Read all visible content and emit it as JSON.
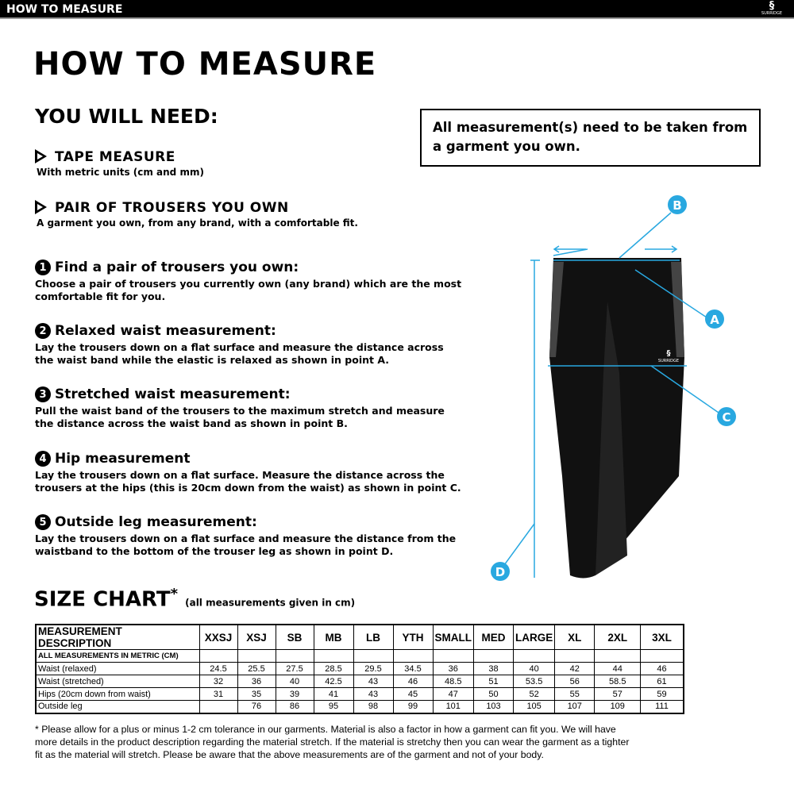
{
  "header": {
    "title": "HOW TO MEASURE",
    "brand": "SURRIDGE"
  },
  "main": {
    "title": "HOW TO MEASURE",
    "you_will_need": "YOU WILL NEED:",
    "needs": [
      {
        "title": "TAPE MEASURE",
        "desc": "With metric units (cm and mm)"
      },
      {
        "title": "PAIR OF TROUSERS YOU OWN",
        "desc": "A garment you own, from any brand, with a comfortable fit."
      }
    ],
    "steps": [
      {
        "num": "1",
        "title": "Find a pair of trousers you own:",
        "desc": "Choose a pair of trousers you currently own (any brand) which are the most comfortable fit for you."
      },
      {
        "num": "2",
        "title": "Relaxed waist measurement:",
        "desc": "Lay the trousers down on a flat surface and measure the distance across the waist band while the elastic is relaxed as shown in point A."
      },
      {
        "num": "3",
        "title": "Stretched waist measurement:",
        "desc": "Pull the waist band of the trousers to the maximum stretch and measure the distance across the waist band as shown in point B."
      },
      {
        "num": "4",
        "title": "Hip measurement",
        "desc": "Lay the trousers down on a flat surface. Measure the distance across the trousers at the hips (this is 20cm down from the waist)  as shown in point C."
      },
      {
        "num": "5",
        "title": "Outside leg measurement:",
        "desc": "Lay the trousers down on a flat surface and measure the distance from the waistband to the bottom of the trouser  leg as shown in point D."
      }
    ],
    "note": "All measurement(s) need to be taken from a garment you own.",
    "points": [
      "A",
      "B",
      "C",
      "D"
    ],
    "accent": "#29a8e0"
  },
  "size_chart": {
    "title": "SIZE CHART",
    "asterisk": "*",
    "subtitle": "(all measurements given in cm)",
    "headers": [
      "MEASUREMENT DESCRIPTION",
      "XXSJ",
      "XSJ",
      "SB",
      "MB",
      "LB",
      "YTH",
      "SMALL",
      "MED",
      "LARGE",
      "XL",
      "2XL",
      "3XL"
    ],
    "subheader": "ALL MEASUREMENTS IN METRIC (CM)",
    "rows": [
      {
        "label": "Waist (relaxed)",
        "values": [
          "24.5",
          "25.5",
          "27.5",
          "28.5",
          "29.5",
          "34.5",
          "36",
          "38",
          "40",
          "42",
          "44",
          "46"
        ]
      },
      {
        "label": "Waist (stretched)",
        "values": [
          "32",
          "36",
          "40",
          "42.5",
          "43",
          "46",
          "48.5",
          "51",
          "53.5",
          "56",
          "58.5",
          "61"
        ]
      },
      {
        "label": "Hips (20cm down from waist)",
        "values": [
          "31",
          "35",
          "39",
          "41",
          "43",
          "45",
          "47",
          "50",
          "52",
          "55",
          "57",
          "59"
        ]
      },
      {
        "label": "Outside leg",
        "values": [
          "",
          "76",
          "86",
          "95",
          "98",
          "99",
          "101",
          "103",
          "105",
          "107",
          "109",
          "111"
        ]
      }
    ]
  },
  "footnote": "* Please allow for a plus or minus 1-2 cm tolerance in our garments. Material is also a factor in how a garment can fit you. We will have more details in the product description regarding the material stretch.  If the material is stretchy then you can wear the garment as a tighter fit as the material will stretch.  Please be aware that the above measurements are of the garment and not of your body."
}
